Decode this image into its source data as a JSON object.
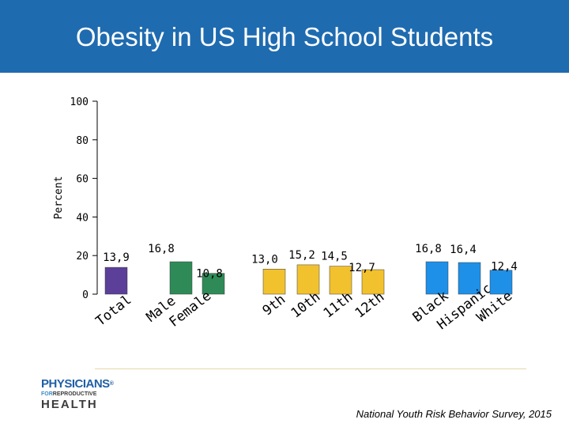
{
  "slide": {
    "title": "Obesity in US High School Students",
    "source": "National Youth Risk Behavior Survey, 2015"
  },
  "logo": {
    "line1": "PHYSICIANS",
    "reg": "®",
    "for": "FOR",
    "line2": "REPRODUCTIVE",
    "line3": "HEALTH"
  },
  "colors": {
    "header": "#1f6bb0",
    "total": "#5b3f99",
    "sex": "#2e8b57",
    "grade": "#f2c12e",
    "race": "#1e90e8"
  },
  "chart_data": {
    "type": "bar",
    "ylabel": "Percent",
    "ylim": [
      0,
      100
    ],
    "yticks": [
      0,
      20,
      40,
      60,
      80,
      100
    ],
    "categories": [
      "Total",
      "Male",
      "Female",
      "9th",
      "10th",
      "11th",
      "12th",
      "Black",
      "Hispanic",
      "White"
    ],
    "values": [
      13.9,
      16.8,
      10.8,
      13.0,
      15.2,
      14.5,
      12.7,
      16.8,
      16.4,
      12.4
    ],
    "value_labels": [
      "13,9",
      "16,8",
      "10,8",
      "13,0",
      "15,2",
      "14,5",
      "12,7",
      "16,8",
      "16,4",
      "12,4"
    ],
    "groups": [
      "total",
      "sex",
      "sex",
      "grade",
      "grade",
      "grade",
      "grade",
      "race",
      "race",
      "race"
    ],
    "grid": false,
    "legend": "none"
  }
}
